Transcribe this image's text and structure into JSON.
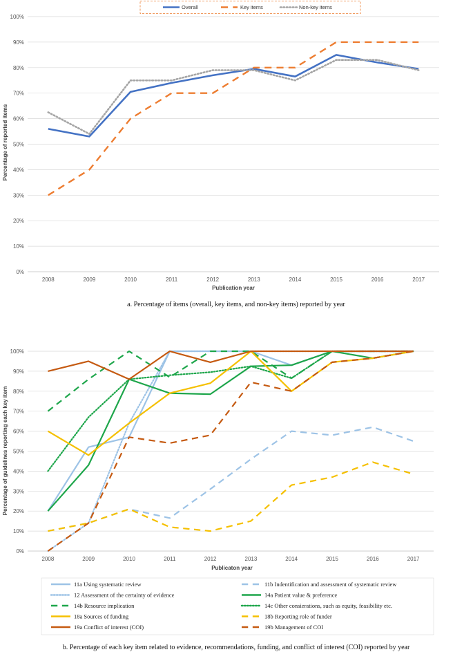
{
  "chart_data": [
    {
      "type": "line",
      "title": "",
      "caption": "a. Percentage of items (overall, key items, and non-key items) reported by year",
      "xlabel": "Publication year",
      "ylabel": "Percentage of reported items",
      "categories": [
        "2008",
        "2009",
        "2010",
        "2011",
        "2012",
        "2013",
        "2014",
        "2015",
        "2016",
        "2017"
      ],
      "y_ticks": [
        "0%",
        "10%",
        "20%",
        "30%",
        "40%",
        "50%",
        "60%",
        "70%",
        "80%",
        "90%",
        "100%"
      ],
      "ylim": [
        0,
        100
      ],
      "grid": true,
      "legend_position": "top",
      "series": [
        {
          "name": "Overall",
          "color": "#4472C4",
          "dash": "solid",
          "width": 2.6,
          "values": [
            56,
            53,
            70.5,
            74,
            77,
            79.5,
            76.5,
            85,
            82,
            79.5
          ]
        },
        {
          "name": "Key items",
          "color": "#ED7D31",
          "dash": "long-dash",
          "width": 2.4,
          "values": [
            30,
            40,
            60,
            70,
            70,
            80,
            80,
            90,
            90,
            90
          ]
        },
        {
          "name": "Non-key items",
          "color": "#A5A5A5",
          "dash": "dot",
          "width": 2.6,
          "values": [
            62.5,
            54,
            75,
            75,
            79,
            79,
            75,
            83,
            83,
            79
          ]
        }
      ]
    },
    {
      "type": "line",
      "title": "",
      "caption": "b. Percentage of each key item related to evidence, recommendations, funding, and conflict of interest (COI) reported by year",
      "xlabel": "Publicaton year",
      "ylabel": "Percentage of guidelines reporting each key item",
      "categories": [
        "2008",
        "2009",
        "2010",
        "2011",
        "2012",
        "2013",
        "2014",
        "2015",
        "2016",
        "2017"
      ],
      "y_ticks": [
        "0%",
        "10%",
        "20%",
        "30%",
        "40%",
        "50%",
        "60%",
        "70%",
        "80%",
        "90%",
        "100%"
      ],
      "ylim": [
        0,
        100
      ],
      "grid": true,
      "legend_position": "bottom",
      "series": [
        {
          "name": "11a Using systematic review",
          "color": "#9DC3E6",
          "dash": "solid",
          "width": 2.2,
          "values": [
            20,
            52,
            57,
            100,
            100,
            100,
            93,
            100,
            100,
            100
          ]
        },
        {
          "name": "11b Indentification and assessment of systematic review",
          "color": "#9DC3E6",
          "dash": "long-dash",
          "width": 2.2,
          "values": [
            10,
            14,
            21,
            16.5,
            31,
            46,
            60,
            58,
            62,
            55
          ]
        },
        {
          "name": "12  Assessment of the certainty of evidence",
          "color": "#9DC3E6",
          "dash": "dot",
          "width": 2.2,
          "values": [
            0,
            14,
            64,
            100,
            100,
            100,
            100,
            100,
            100,
            100
          ]
        },
        {
          "name": "14a Patient value & preference",
          "color": "#1EA64B",
          "dash": "solid",
          "width": 2.2,
          "values": [
            20,
            43,
            86,
            79,
            78.5,
            92.5,
            93,
            100,
            96.5,
            100
          ]
        },
        {
          "name": "14b Resource implication",
          "color": "#1EA64B",
          "dash": "long-dash",
          "width": 2.2,
          "values": [
            70,
            86,
            100,
            87,
            100,
            100,
            86.5,
            100,
            100,
            100
          ]
        },
        {
          "name": "14c Other consierations, such as equity, feasibility etc.",
          "color": "#1EA64B",
          "dash": "dot",
          "width": 2.2,
          "values": [
            40,
            67,
            86,
            88,
            89.5,
            92.5,
            86.5,
            100,
            100,
            100
          ]
        },
        {
          "name": "18a Sources of funding",
          "color": "#F5C000",
          "dash": "solid",
          "width": 2.2,
          "values": [
            60,
            48,
            64,
            79,
            84,
            100,
            80,
            94.5,
            96.5,
            100
          ]
        },
        {
          "name": "18b Reporting role of funder",
          "color": "#F5C000",
          "dash": "long-dash",
          "width": 2.2,
          "values": [
            10,
            14,
            21,
            12,
            10,
            15,
            33,
            37,
            44.5,
            38.5
          ]
        },
        {
          "name": "19a Conflict of interest (COI)",
          "color": "#C55A11",
          "dash": "solid",
          "width": 2.2,
          "values": [
            90,
            95,
            86,
            100,
            94.5,
            100,
            100,
            100,
            100,
            100
          ]
        },
        {
          "name": "19b Management of COI",
          "color": "#C55A11",
          "dash": "long-dash",
          "width": 2.2,
          "values": [
            0,
            14,
            57,
            54,
            58,
            84.5,
            80,
            94.5,
            96.5,
            100
          ]
        }
      ]
    }
  ]
}
